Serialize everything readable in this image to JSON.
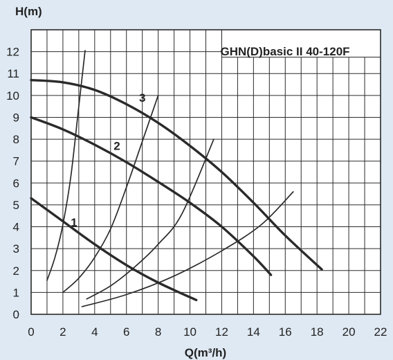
{
  "chart_data": {
    "type": "line",
    "title": "GHN(D)basic II 40-120F",
    "xlabel": "Q(m³/h)",
    "ylabel": "H(m)",
    "xlim": [
      0,
      22
    ],
    "ylim": [
      0,
      13
    ],
    "x_ticks": [
      0,
      2,
      4,
      6,
      8,
      10,
      12,
      14,
      16,
      18,
      20,
      22
    ],
    "y_ticks": [
      0,
      1,
      2,
      3,
      4,
      5,
      6,
      7,
      8,
      9,
      10,
      11,
      12
    ],
    "grid": true,
    "colors": {
      "background": "#dfe9f3",
      "plot_background": "#ffffff",
      "line": "#2a2a2a",
      "grid": "#2a2a2a"
    },
    "pump_curves": [
      {
        "label": "1",
        "label_at": [
          2.7,
          4.2
        ],
        "points": [
          [
            0,
            5.3
          ],
          [
            2,
            4.25
          ],
          [
            4,
            3.2
          ],
          [
            6,
            2.25
          ],
          [
            8,
            1.45
          ],
          [
            10.4,
            0.65
          ]
        ]
      },
      {
        "label": "2",
        "label_at": [
          5.4,
          7.7
        ],
        "points": [
          [
            0,
            9.0
          ],
          [
            2,
            8.45
          ],
          [
            4,
            7.75
          ],
          [
            6,
            6.95
          ],
          [
            8,
            6.05
          ],
          [
            10,
            5.1
          ],
          [
            12,
            4.0
          ],
          [
            14,
            2.65
          ],
          [
            15.1,
            1.8
          ]
        ]
      },
      {
        "label": "3",
        "label_at": [
          7.0,
          9.9
        ],
        "points": [
          [
            0,
            10.7
          ],
          [
            2,
            10.6
          ],
          [
            4,
            10.25
          ],
          [
            6,
            9.6
          ],
          [
            8,
            8.75
          ],
          [
            10,
            7.7
          ],
          [
            12,
            6.5
          ],
          [
            14,
            5.1
          ],
          [
            16,
            3.6
          ],
          [
            18.3,
            2.05
          ]
        ]
      }
    ],
    "system_curves": [
      {
        "points": [
          [
            1.0,
            1.55
          ],
          [
            1.5,
            2.6
          ],
          [
            2.0,
            4.1
          ],
          [
            2.5,
            6.3
          ],
          [
            3.0,
            9.5
          ],
          [
            3.4,
            12.05
          ]
        ]
      },
      {
        "points": [
          [
            2.0,
            1.0
          ],
          [
            3.0,
            1.65
          ],
          [
            4.0,
            2.6
          ],
          [
            5.0,
            3.9
          ],
          [
            6.0,
            5.8
          ],
          [
            7.0,
            7.9
          ],
          [
            8.0,
            10.0
          ]
        ]
      },
      {
        "points": [
          [
            3.5,
            0.7
          ],
          [
            5.0,
            1.3
          ],
          [
            6.5,
            2.15
          ],
          [
            8.0,
            3.2
          ],
          [
            9.5,
            4.6
          ],
          [
            11.5,
            8.0
          ]
        ]
      },
      {
        "points": [
          [
            3.2,
            0.35
          ],
          [
            6.0,
            0.9
          ],
          [
            9.0,
            1.75
          ],
          [
            12.0,
            2.9
          ],
          [
            14.5,
            4.1
          ],
          [
            16.5,
            5.6
          ]
        ]
      }
    ]
  }
}
